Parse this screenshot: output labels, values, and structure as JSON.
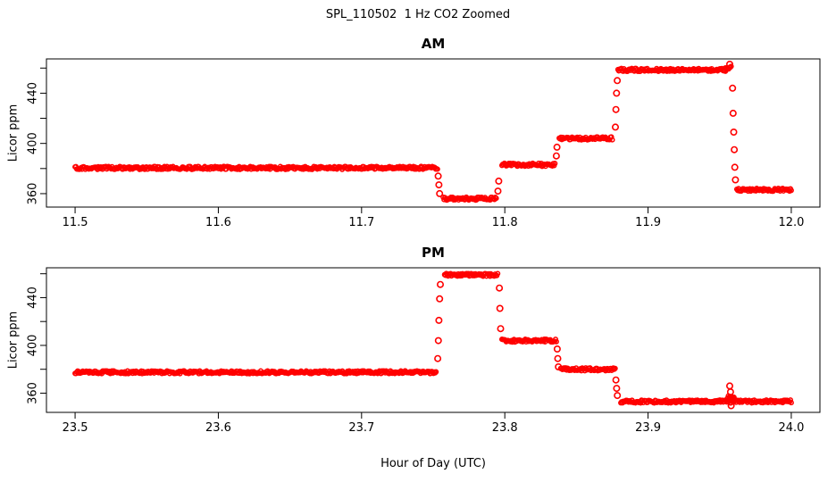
{
  "chart_data": {
    "type": "scatter",
    "title": "SPL_110502  1 Hz CO2 Zoomed",
    "xlabel": "Hour of Day (UTC)",
    "ylabel": "Licor ppm",
    "marker": "open-circle",
    "point_color": "#FF0000",
    "axis_color": "#000000",
    "background": "#FFFFFF",
    "legend": "none",
    "grid": false,
    "panels": [
      {
        "title": "AM",
        "xlim": [
          11.48,
          12.02
        ],
        "ylim": [
          349.3,
          467.3
        ],
        "xticks": [
          11.5,
          11.6,
          11.7,
          11.8,
          11.9,
          12.0
        ],
        "yticks": [
          360,
          380,
          400,
          420,
          440,
          460
        ],
        "ytick_labels": [
          360,
          400,
          440
        ],
        "segments": [
          {
            "x0": 11.5,
            "x1": 11.753,
            "y": 380.5
          },
          {
            "x0": 11.757,
            "x1": 11.794,
            "y": 356.0
          },
          {
            "x0": 11.798,
            "x1": 11.835,
            "y": 383.0
          },
          {
            "x0": 11.838,
            "x1": 11.875,
            "y": 404.0
          },
          {
            "x0": 11.879,
            "x1": 11.954,
            "y": 458.5
          },
          {
            "x0": 11.954,
            "x1": 11.958,
            "y": 460.5
          },
          {
            "x0": 11.962,
            "x1": 12.0,
            "y": 363.0
          }
        ],
        "transition_points": [
          {
            "x": 11.7535,
            "y": 374
          },
          {
            "x": 11.754,
            "y": 367
          },
          {
            "x": 11.7545,
            "y": 360
          },
          {
            "x": 11.7952,
            "y": 362
          },
          {
            "x": 11.7958,
            "y": 370
          },
          {
            "x": 11.836,
            "y": 390
          },
          {
            "x": 11.8364,
            "y": 397
          },
          {
            "x": 11.8772,
            "y": 413
          },
          {
            "x": 11.8776,
            "y": 427
          },
          {
            "x": 11.878,
            "y": 440
          },
          {
            "x": 11.8785,
            "y": 450
          },
          {
            "x": 11.957,
            "y": 463
          },
          {
            "x": 11.959,
            "y": 444
          },
          {
            "x": 11.9594,
            "y": 424
          },
          {
            "x": 11.9598,
            "y": 409
          },
          {
            "x": 11.9602,
            "y": 395
          },
          {
            "x": 11.9606,
            "y": 381
          },
          {
            "x": 11.961,
            "y": 371
          }
        ]
      },
      {
        "title": "PM",
        "xlim": [
          23.48,
          24.02
        ],
        "ylim": [
          343.9,
          465.0
        ],
        "xticks": [
          23.5,
          23.6,
          23.7,
          23.8,
          23.9,
          24.0
        ],
        "yticks": [
          360,
          380,
          400,
          420,
          440,
          460
        ],
        "ytick_labels": [
          360,
          400,
          440
        ],
        "segments": [
          {
            "x0": 23.5,
            "x1": 23.752,
            "y": 377.5
          },
          {
            "x0": 23.758,
            "x1": 23.795,
            "y": 459.0
          },
          {
            "x0": 23.798,
            "x1": 23.836,
            "y": 404.0
          },
          {
            "x0": 23.839,
            "x1": 23.877,
            "y": 380.0
          },
          {
            "x0": 23.881,
            "x1": 24.0,
            "y": 353.0
          },
          {
            "x0": 23.9555,
            "x1": 23.96,
            "y": 356.5
          }
        ],
        "transition_points": [
          {
            "x": 23.7532,
            "y": 389
          },
          {
            "x": 23.7536,
            "y": 404
          },
          {
            "x": 23.754,
            "y": 421
          },
          {
            "x": 23.7545,
            "y": 439
          },
          {
            "x": 23.755,
            "y": 451
          },
          {
            "x": 23.7962,
            "y": 448
          },
          {
            "x": 23.7966,
            "y": 431
          },
          {
            "x": 23.7971,
            "y": 414
          },
          {
            "x": 23.8366,
            "y": 397
          },
          {
            "x": 23.837,
            "y": 389
          },
          {
            "x": 23.8374,
            "y": 382
          },
          {
            "x": 23.8776,
            "y": 371
          },
          {
            "x": 23.8781,
            "y": 364
          },
          {
            "x": 23.8786,
            "y": 358
          },
          {
            "x": 23.957,
            "y": 366
          },
          {
            "x": 23.9576,
            "y": 361
          },
          {
            "x": 23.958,
            "y": 349.5
          }
        ]
      }
    ]
  }
}
